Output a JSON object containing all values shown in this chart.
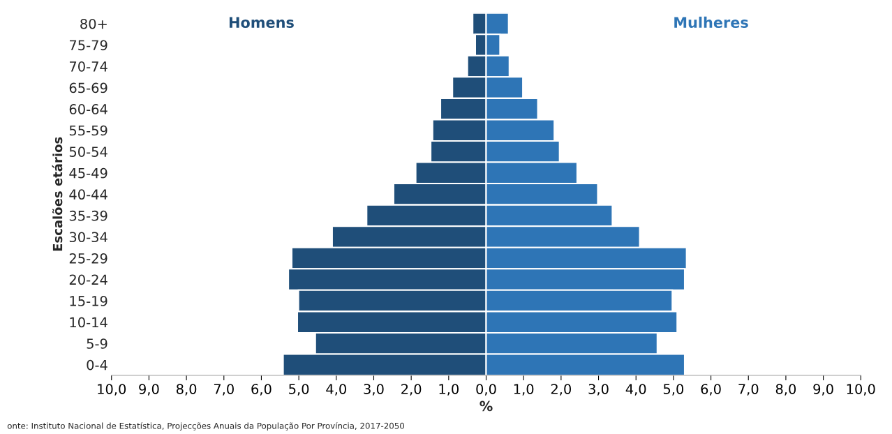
{
  "chart_data": {
    "type": "bar",
    "orientation": "horizontal",
    "xlabel": "%",
    "ylabel": "Escalões etários",
    "categories": [
      "80+",
      "75-79",
      "70-74",
      "65-69",
      "60-64",
      "55-59",
      "50-54",
      "45-49",
      "40-44",
      "35-39",
      "30-34",
      "25-29",
      "20-24",
      "15-19",
      "10-14",
      "5-9",
      "0-4"
    ],
    "series": [
      {
        "name": "Homens",
        "color": "#1f4e79",
        "values": [
          -0.36,
          -0.29,
          -0.5,
          -0.9,
          -1.22,
          -1.43,
          -1.48,
          -1.88,
          -2.47,
          -3.19,
          -4.11,
          -5.19,
          -5.28,
          -5.01,
          -5.04,
          -4.56,
          -5.42
        ]
      },
      {
        "name": "Mulheres",
        "color": "#2e75b6",
        "values": [
          0.6,
          0.37,
          0.62,
          0.98,
          1.38,
          1.82,
          1.96,
          2.43,
          2.98,
          3.37,
          4.1,
          5.35,
          5.3,
          4.97,
          5.1,
          4.57,
          5.3
        ]
      }
    ],
    "xlim": [
      -10,
      10
    ],
    "xticks": [
      {
        "value": -10,
        "label": "10,0"
      },
      {
        "value": -9,
        "label": "9,0"
      },
      {
        "value": -8,
        "label": "8,0"
      },
      {
        "value": -7,
        "label": "7,0"
      },
      {
        "value": -6,
        "label": "6,0"
      },
      {
        "value": -5,
        "label": "5,0"
      },
      {
        "value": -4,
        "label": "4,0"
      },
      {
        "value": -3,
        "label": "3,0"
      },
      {
        "value": -2,
        "label": "2,0"
      },
      {
        "value": -1,
        "label": "1,0"
      },
      {
        "value": 0,
        "label": "0,0"
      },
      {
        "value": 1,
        "label": "1,0"
      },
      {
        "value": 2,
        "label": "2,0"
      },
      {
        "value": 3,
        "label": "3,0"
      },
      {
        "value": 4,
        "label": "4,0"
      },
      {
        "value": 5,
        "label": "5,0"
      },
      {
        "value": 6,
        "label": "6,0"
      },
      {
        "value": 7,
        "label": "7,0"
      },
      {
        "value": 8,
        "label": "8,0"
      },
      {
        "value": 9,
        "label": "9,0"
      },
      {
        "value": 10,
        "label": "10,0"
      }
    ],
    "grid": false,
    "legend": false,
    "stacked": true,
    "annotations": [
      "onte: Instituto Nacional de Estatística, Projecções Anuais da População Por Província, 2017-2050"
    ]
  }
}
